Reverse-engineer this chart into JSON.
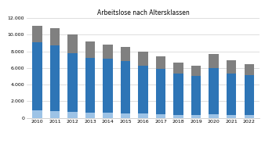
{
  "title": "Arbeitslose nach Altersklassen",
  "years": [
    2010,
    2011,
    2012,
    2013,
    2014,
    2015,
    2016,
    2017,
    2018,
    2019,
    2020,
    2021,
    2022
  ],
  "series": {
    "15 bis unter 25 Jahre": [
      900,
      800,
      700,
      650,
      600,
      550,
      500,
      440,
      380,
      350,
      400,
      370,
      350
    ],
    "25 bis unter 55 Jahre": [
      8200,
      7900,
      7100,
      6600,
      6500,
      6300,
      5800,
      5450,
      4900,
      4700,
      5600,
      5000,
      4750
    ],
    "55 Jahre und älter": [
      2000,
      2050,
      2200,
      1950,
      1750,
      1700,
      1700,
      1550,
      1350,
      1200,
      1700,
      1600,
      1400
    ]
  },
  "colors": {
    "15 bis unter 25 Jahre": "#9dc3e6",
    "25 bis unter 55 Jahre": "#2e75b6",
    "55 Jahre und älter": "#808080"
  },
  "ylim": [
    0,
    12000
  ],
  "yticks": [
    0,
    2000,
    4000,
    6000,
    8000,
    10000,
    12000
  ],
  "background_color": "#ffffff",
  "grid_color": "#d0d0d0"
}
